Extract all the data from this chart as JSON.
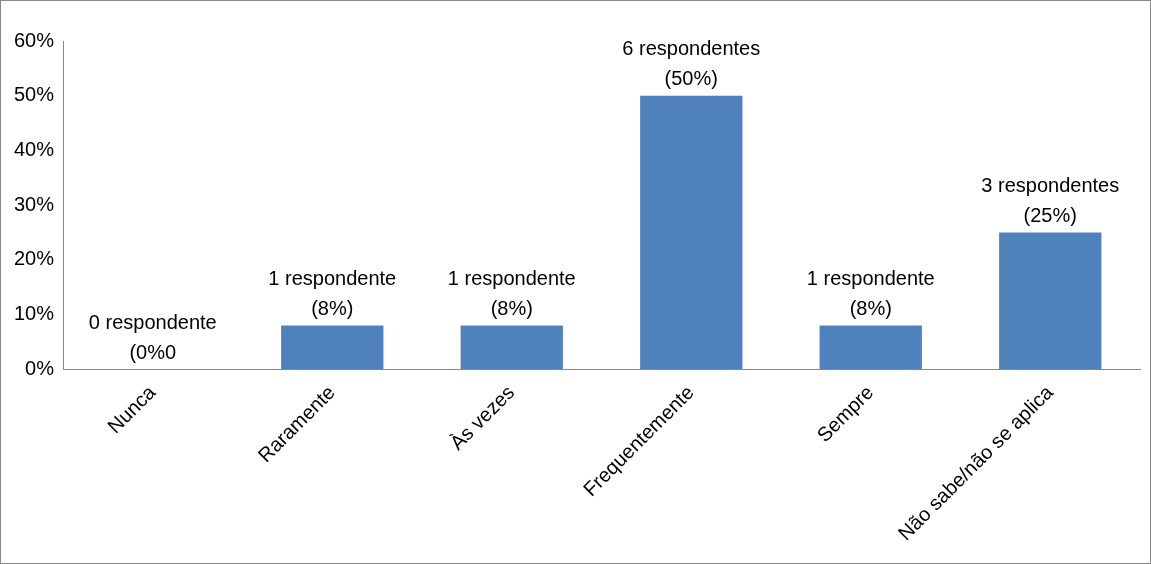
{
  "chart_data": {
    "type": "bar",
    "categories": [
      "Nunca",
      "Raramente",
      "Às vezes",
      "Frequentemente",
      "Sempre",
      "Não sabe/não se aplica"
    ],
    "values": [
      0,
      8,
      8,
      50,
      8,
      25
    ],
    "color": "#4f81bd",
    "value_labels": [
      "0 respondente\n(0%0",
      "1 respondente\n(8%)",
      "1 respondente\n(8%)",
      "6 respondentes\n(50%)",
      "1 respondente\n(8%)",
      "3 respondentes\n(25%)"
    ],
    "ylim": [
      0,
      60
    ],
    "yticks": [
      {
        "value": 0,
        "label": "0%"
      },
      {
        "value": 10,
        "label": "10%"
      },
      {
        "value": 20,
        "label": "20%"
      },
      {
        "value": 30,
        "label": "30%"
      },
      {
        "value": 40,
        "label": "40%"
      },
      {
        "value": 50,
        "label": "50%"
      },
      {
        "value": 60,
        "label": "60%"
      }
    ],
    "grid": false,
    "legend": false
  }
}
